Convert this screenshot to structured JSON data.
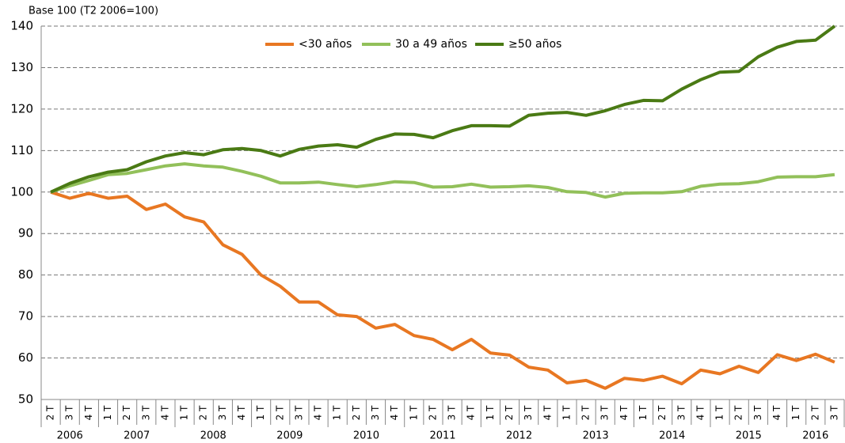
{
  "chart_data": {
    "type": "line",
    "axis_title": "Base 100 (T2 2006=100)",
    "year_groups": [
      {
        "label": "2006",
        "quarters": [
          "2 T",
          "3 T",
          "4 T"
        ]
      },
      {
        "label": "2007",
        "quarters": [
          "1 T",
          "2 T",
          "3 T",
          "4 T"
        ]
      },
      {
        "label": "2008",
        "quarters": [
          "1 T",
          "2 T",
          "3 T",
          "4 T"
        ]
      },
      {
        "label": "2009",
        "quarters": [
          "1 T",
          "2 T",
          "3 T",
          "4 T"
        ]
      },
      {
        "label": "2010",
        "quarters": [
          "1 T",
          "2 T",
          "3 T",
          "4 T"
        ]
      },
      {
        "label": "2011",
        "quarters": [
          "1 T",
          "2 T",
          "3 T",
          "4 T"
        ]
      },
      {
        "label": "2012",
        "quarters": [
          "1 T",
          "2 T",
          "3 T",
          "4 T"
        ]
      },
      {
        "label": "2013",
        "quarters": [
          "1 T",
          "2 T",
          "3 T",
          "4 T"
        ]
      },
      {
        "label": "2014",
        "quarters": [
          "1 T",
          "2 T",
          "3 T",
          "4 T"
        ]
      },
      {
        "label": "2015",
        "quarters": [
          "1 T",
          "2 T",
          "3 T",
          "4 T"
        ]
      },
      {
        "label": "2016",
        "quarters": [
          "1 T",
          "2 T",
          "3 T"
        ]
      }
    ],
    "series": [
      {
        "name": "<30 años",
        "color": "#e87722",
        "values": [
          100,
          98.5,
          99.7,
          98.5,
          99,
          95.8,
          97.1,
          94,
          92.8,
          87.3,
          85,
          80,
          77.3,
          73.5,
          73.5,
          70.4,
          70,
          67.2,
          68.1,
          65.4,
          64.5,
          62,
          64.5,
          61.2,
          60.7,
          57.8,
          57.1,
          54,
          54.6,
          52.7,
          55.1,
          54.6,
          55.6,
          53.8,
          57.1,
          56.2,
          58,
          56.5,
          60.8,
          59.4,
          60.9,
          59
        ]
      },
      {
        "name": "30 a 49 años",
        "color": "#92c05a",
        "values": [
          100,
          101.5,
          102.8,
          104.2,
          104.5,
          105.4,
          106.3,
          106.8,
          106.3,
          106,
          105,
          103.8,
          102.2,
          102.2,
          102.4,
          101.8,
          101.3,
          101.8,
          102.5,
          102.3,
          101.2,
          101.3,
          101.9,
          101.2,
          101.3,
          101.5,
          101.1,
          100.1,
          99.9,
          98.8,
          99.7,
          99.8,
          99.8,
          100.1,
          101.4,
          101.9,
          102,
          102.5,
          103.6,
          103.7,
          103.7,
          104.2
        ]
      },
      {
        "name": "≥50 años",
        "color": "#4a7a14",
        "values": [
          100,
          102.1,
          103.7,
          104.8,
          105.4,
          107.3,
          108.7,
          109.5,
          109,
          110.2,
          110.5,
          110,
          108.7,
          110.3,
          111.1,
          111.4,
          110.8,
          112.7,
          114,
          113.9,
          113.1,
          114.8,
          116,
          116,
          115.9,
          118.5,
          119,
          119.2,
          118.5,
          119.6,
          121.1,
          122.1,
          122,
          124.8,
          127.1,
          128.9,
          129.1,
          132.6,
          134.9,
          136.3,
          136.6,
          140
        ]
      }
    ],
    "ylim": [
      50,
      140
    ],
    "yticks": [
      50,
      60,
      70,
      80,
      90,
      100,
      110,
      120,
      130,
      140
    ],
    "grid": true
  }
}
